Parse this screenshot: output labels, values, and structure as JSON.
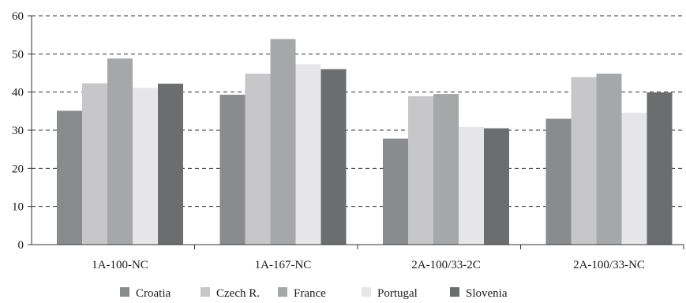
{
  "chart_data": {
    "type": "bar",
    "title": "",
    "xlabel": "",
    "ylabel": "",
    "ylim": [
      0,
      60
    ],
    "yticks": [
      0,
      10,
      20,
      30,
      40,
      50,
      60
    ],
    "grid": "horizontal-dashed",
    "legend_position": "bottom",
    "categories": [
      "1A-100-NC",
      "1A-167-NC",
      "2A-100/33-2C",
      "2A-100/33-NC"
    ],
    "series": [
      {
        "name": "Croatia",
        "color": "#8a8b8d",
        "values": [
          35.1,
          39.3,
          27.8,
          33.0
        ]
      },
      {
        "name": "Czech R.",
        "color": "#c7c7c9",
        "values": [
          42.3,
          44.8,
          38.9,
          43.9
        ]
      },
      {
        "name": "France",
        "color": "#a6a7a9",
        "values": [
          48.8,
          53.9,
          39.5,
          44.8
        ]
      },
      {
        "name": "Portugal",
        "color": "#e6e6e8",
        "values": [
          41.1,
          47.3,
          30.9,
          34.6
        ]
      },
      {
        "name": "Slovenia",
        "color": "#6c6d6f",
        "values": [
          42.2,
          46.0,
          30.5,
          39.9
        ]
      }
    ]
  }
}
